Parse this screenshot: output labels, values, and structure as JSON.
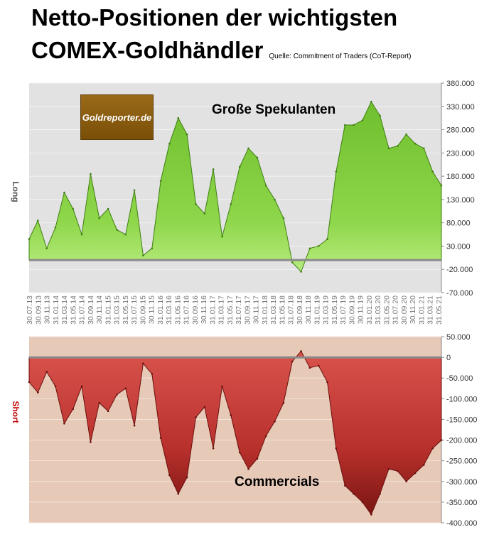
{
  "header": {
    "title_line1": "Netto-Positionen der wichtigsten",
    "title_line2": "COMEX-Goldhändler",
    "source": "Quelle: Commitment of Traders (CoT-Report)"
  },
  "logo": {
    "text": "Goldreporter.de"
  },
  "chart_data": [
    {
      "type": "area",
      "title": "Große Spekulanten",
      "ylabel": "Long",
      "ylim": [
        -70000,
        380000
      ],
      "yticks": [
        "380.000",
        "330.000",
        "280.000",
        "230.000",
        "180.000",
        "130.000",
        "80.000",
        "30.000",
        "-20.000",
        "-70.000"
      ],
      "categories": [
        "30.07.13",
        "30.09.13",
        "30.11.13",
        "31.01.14",
        "31.03.14",
        "31.05.14",
        "31.07.14",
        "30.09.14",
        "30.11.14",
        "31.01.15",
        "31.03.15",
        "31.05.15",
        "31.07.15",
        "30.09.15",
        "30.11.15",
        "31.01.16",
        "31.03.16",
        "31.05.16",
        "31.07.16",
        "30.09.16",
        "30.11.16",
        "31.01.17",
        "31.03.17",
        "31.05.17",
        "31.07.17",
        "30.09.17",
        "30.11.17",
        "31.01.18",
        "31.03.18",
        "31.05.18",
        "31.07.18",
        "30.09.18",
        "30.11.18",
        "31.01.19",
        "31.03.19",
        "31.05.19",
        "31.07.19",
        "30.09.19",
        "30.11.19",
        "31.01.20",
        "31.03.20",
        "31.05.20",
        "31.07.20",
        "30.09.20",
        "30.11.20",
        "31.01.21",
        "31.03.21",
        "31.05.21"
      ],
      "values": [
        45000,
        85000,
        25000,
        70000,
        145000,
        110000,
        55000,
        185000,
        90000,
        110000,
        65000,
        55000,
        150000,
        10000,
        25000,
        170000,
        250000,
        305000,
        270000,
        120000,
        100000,
        195000,
        50000,
        120000,
        200000,
        240000,
        220000,
        160000,
        130000,
        90000,
        -5000,
        -25000,
        25000,
        30000,
        45000,
        190000,
        290000,
        290000,
        300000,
        340000,
        310000,
        240000,
        245000,
        270000,
        250000,
        240000,
        190000,
        160000
      ],
      "color": "#8ed64a"
    },
    {
      "type": "area",
      "title": "Commercials",
      "ylabel": "Short",
      "ylim": [
        -400000,
        50000
      ],
      "yticks": [
        "50.000",
        "0",
        "-50.000",
        "-100.000",
        "-150.000",
        "-200.000",
        "-250.000",
        "-300.000",
        "-350.000",
        "-400.000"
      ],
      "categories": [
        "30.07.13",
        "30.09.13",
        "30.11.13",
        "31.01.14",
        "31.03.14",
        "31.05.14",
        "31.07.14",
        "30.09.14",
        "30.11.14",
        "31.01.15",
        "31.03.15",
        "31.05.15",
        "31.07.15",
        "30.09.15",
        "30.11.15",
        "31.01.16",
        "31.03.16",
        "31.05.16",
        "31.07.16",
        "30.09.16",
        "30.11.16",
        "31.01.17",
        "31.03.17",
        "31.05.17",
        "31.07.17",
        "30.09.17",
        "30.11.17",
        "31.01.18",
        "31.03.18",
        "31.05.18",
        "31.07.18",
        "30.09.18",
        "30.11.18",
        "31.01.19",
        "31.03.19",
        "31.05.19",
        "31.07.19",
        "30.09.19",
        "30.11.19",
        "31.01.20",
        "31.03.20",
        "31.05.20",
        "31.07.20",
        "30.09.20",
        "30.11.20",
        "31.01.21",
        "31.03.21",
        "31.05.21"
      ],
      "values": [
        -60000,
        -85000,
        -35000,
        -70000,
        -160000,
        -125000,
        -70000,
        -205000,
        -110000,
        -130000,
        -90000,
        -75000,
        -165000,
        -15000,
        -40000,
        -195000,
        -285000,
        -330000,
        -290000,
        -145000,
        -120000,
        -220000,
        -70000,
        -140000,
        -230000,
        -270000,
        -245000,
        -190000,
        -155000,
        -110000,
        -10000,
        15000,
        -25000,
        -20000,
        -60000,
        -220000,
        -310000,
        -330000,
        -350000,
        -380000,
        -330000,
        -270000,
        -275000,
        -300000,
        -280000,
        -260000,
        -220000,
        -200000
      ],
      "color": "#b8302c"
    }
  ]
}
